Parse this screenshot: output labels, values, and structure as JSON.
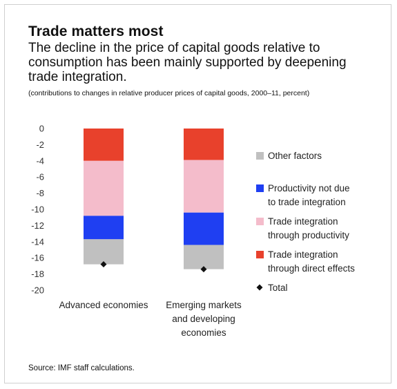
{
  "title": "Trade matters most",
  "subtitle": "The decline in the price of capital goods relative to consumption has been mainly supported by deepening trade integration.",
  "note": "(contributions to changes in relative producer prices of capital goods, 2000–11, percent)",
  "source": "Source: IMF staff calculations.",
  "chart_data": {
    "type": "bar",
    "stacked": true,
    "categories": [
      [
        "Advanced economies"
      ],
      [
        "Emerging markets",
        "and developing",
        "economies"
      ]
    ],
    "ylim": [
      -20,
      0
    ],
    "yticks": [
      0,
      -2,
      -4,
      -6,
      -8,
      -10,
      -12,
      -14,
      -16,
      -18,
      -20
    ],
    "grid": false,
    "legend_position": "right",
    "series": [
      {
        "name": "Trade integration through direct effects",
        "legend_lines": [
          "Trade integration",
          "through direct effects"
        ],
        "color": "#e8412c",
        "values": [
          -4.0,
          -3.9
        ]
      },
      {
        "name": "Trade integration through productivity",
        "legend_lines": [
          "Trade integration",
          "through productivity"
        ],
        "color": "#f4bccb",
        "values": [
          -6.8,
          -6.5
        ]
      },
      {
        "name": "Productivity not due to trade integration",
        "legend_lines": [
          "Productivity not due",
          "to trade integration"
        ],
        "color": "#1f3ff2",
        "values": [
          -2.9,
          -4.0
        ]
      },
      {
        "name": "Other factors",
        "legend_lines": [
          "Other factors"
        ],
        "color": "#c0c0c0",
        "values": [
          -3.1,
          -3.0
        ]
      }
    ],
    "total": {
      "name": "Total",
      "legend_lines": [
        "Total"
      ],
      "color": "#111111",
      "values": [
        -16.8,
        -17.4
      ]
    },
    "legend_order": [
      "Other factors",
      "Productivity not due to trade integration",
      "Trade integration through productivity",
      "Trade integration through direct effects",
      "Total"
    ]
  }
}
